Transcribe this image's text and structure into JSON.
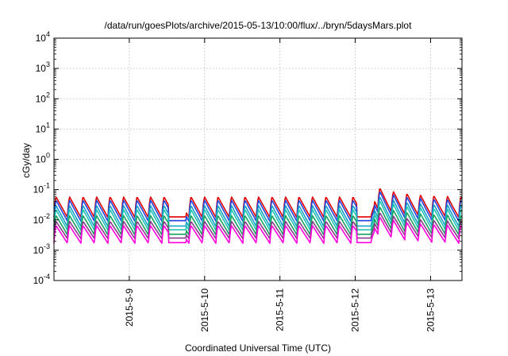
{
  "chart_data": {
    "type": "line",
    "title": "/data/run/goesPlots/archive/2015-05-13/10:00/flux/../bryn/5daysMars.plot",
    "xlabel": "Coordinated Universal Time (UTC)",
    "ylabel": "cGy/day",
    "yscale": "log",
    "ylim": [
      0.0001,
      10000
    ],
    "xlim": [
      "2015-05-08T00:00",
      "2015-05-13T10:00"
    ],
    "y_ticks": [
      {
        "base": "10",
        "exp": "-4"
      },
      {
        "base": "10",
        "exp": "-3"
      },
      {
        "base": "10",
        "exp": "-2"
      },
      {
        "base": "10",
        "exp": "-1"
      },
      {
        "base": "10",
        "exp": "0"
      },
      {
        "base": "10",
        "exp": "1"
      },
      {
        "base": "10",
        "exp": "2"
      },
      {
        "base": "10",
        "exp": "3"
      },
      {
        "base": "10",
        "exp": "4"
      }
    ],
    "x_ticks": [
      "2015-5-9",
      "2015-5-10",
      "2015-5-11",
      "2015-5-12",
      "2015-5-13"
    ],
    "grid": true,
    "legend": "none",
    "series": [
      {
        "color": "#e00000",
        "base": 0.058,
        "low": 0.012
      },
      {
        "color": "#2244dd",
        "base": 0.045,
        "low": 0.009
      },
      {
        "color": "#18a0c8",
        "base": 0.03,
        "low": 0.006
      },
      {
        "color": "#22c4b4",
        "base": 0.022,
        "low": 0.0045
      },
      {
        "color": "#18a060",
        "base": 0.014,
        "low": 0.0032
      },
      {
        "color": "#8a3a8a",
        "base": 0.009,
        "low": 0.0024
      },
      {
        "color": "#ff00dd",
        "base": 0.0065,
        "low": 0.0017
      }
    ],
    "pattern": {
      "period_hours": 4.3,
      "start": "2015-05-08T00:00",
      "gaps": [
        "2015-05-09T12:30",
        "2015-05-12T00:30"
      ],
      "event_peak": "2015-05-12T06:00",
      "event_peak_factor": 2.2
    }
  }
}
